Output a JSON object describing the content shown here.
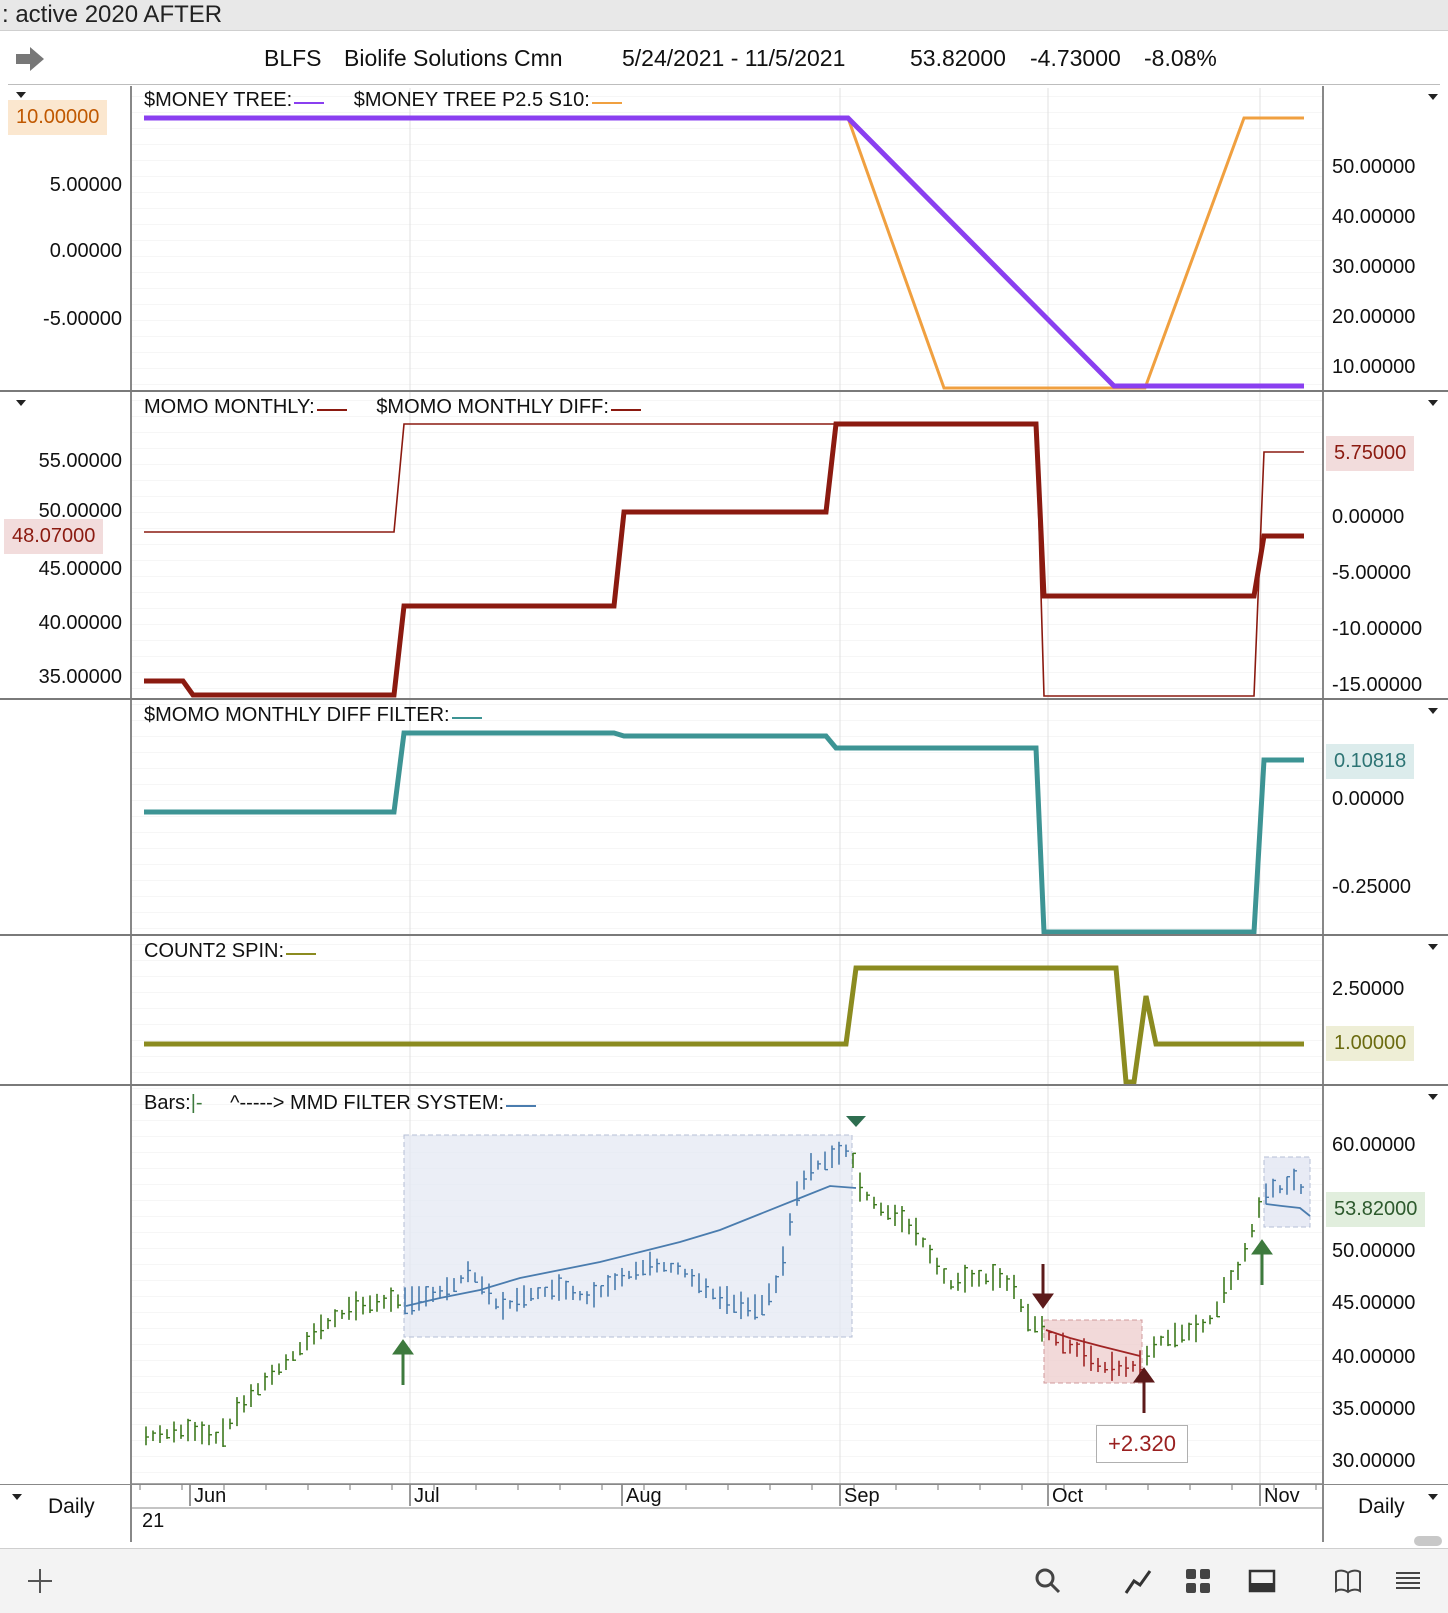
{
  "window": {
    "title": ": active 2020 AFTER"
  },
  "header": {
    "symbol": "BLFS",
    "company": "Biolife Solutions Cmn",
    "date_range": "5/24/2021 - 11/5/2021",
    "last": "53.82000",
    "change": "-4.73000",
    "change_pct": "-8.08%"
  },
  "panes": {
    "money_tree": {
      "title1": "$MONEY TREE:",
      "title2": "$MONEY TREE P2.5 S10:",
      "color1": "#8a3ff0",
      "color2": "#f0a040",
      "left_ticks": [
        "5.00000",
        "0.00000",
        "-5.00000"
      ],
      "left_tag": "10.00000",
      "right_ticks": [
        "50.00000",
        "40.00000",
        "30.00000",
        "20.00000",
        "10.00000"
      ]
    },
    "momo_monthly": {
      "title1": "MOMO MONTHLY:",
      "title2": "$MOMO MONTHLY DIFF:",
      "color": "#8b1a10",
      "left_ticks": [
        "55.00000",
        "50.00000",
        "45.00000",
        "40.00000",
        "35.00000"
      ],
      "left_tag": "48.07000",
      "right_tag": "5.75000",
      "right_ticks": [
        "0.00000",
        "-5.00000",
        "-10.00000",
        "-15.00000"
      ]
    },
    "momo_filter": {
      "title": "$MOMO MONTHLY DIFF FILTER:",
      "color": "#3d9494",
      "right_tag": "0.10818",
      "right_ticks": [
        "0.00000",
        "-0.25000"
      ]
    },
    "count2": {
      "title": "COUNT2 SPIN:",
      "color": "#8b8b20",
      "right_ticks": [
        "2.50000"
      ],
      "right_tag": "1.00000"
    },
    "bars": {
      "title1": "Bars:",
      "title1_sym": "|-",
      "title2": "^-----> MMD FILTER SYSTEM:",
      "right_ticks": [
        "60.00000",
        "50.00000",
        "45.00000",
        "40.00000",
        "35.00000",
        "30.00000"
      ],
      "right_tag": "53.82000",
      "trade_result": "+2.320"
    }
  },
  "time_axis": {
    "months": [
      "Jun",
      "Jul",
      "Aug",
      "Sep",
      "Oct",
      "Nov"
    ],
    "year": "21",
    "period_left": "Daily",
    "period_right": "Daily"
  },
  "toolbar": {
    "icons": [
      "plus-icon",
      "search-icon",
      "line-chart-icon",
      "grid-icon",
      "panel-icon",
      "book-icon",
      "menu-icon"
    ]
  }
}
